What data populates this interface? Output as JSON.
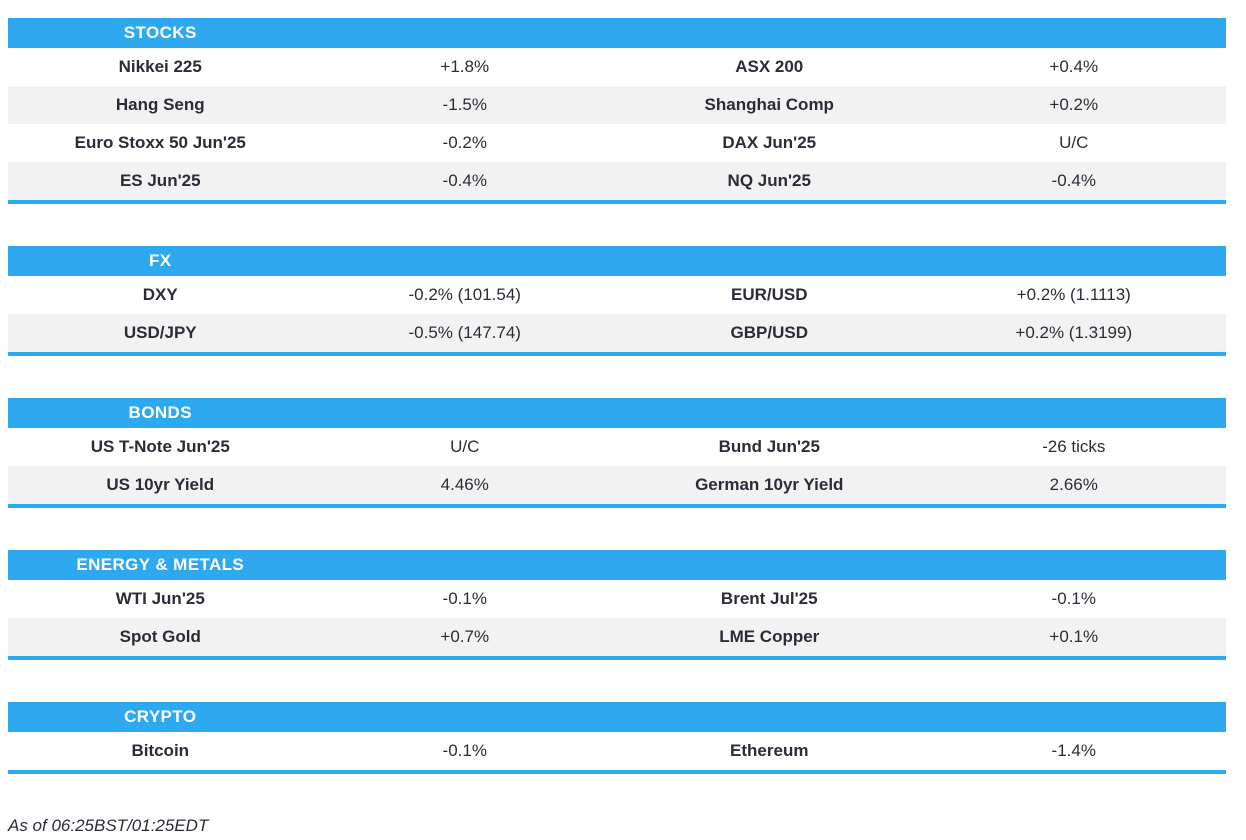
{
  "colors": {
    "accent_blue": "#2ea9f0",
    "header_text": "#ffffff",
    "row_alt_bg": "#f2f2f3",
    "row_bg": "#ffffff",
    "text": "#2c2c38"
  },
  "footer": {
    "as_of": "As of 06:25BST/01:25EDT"
  },
  "chart_data": [
    {
      "type": "table",
      "title": "STOCKS",
      "columns": [
        "instrument",
        "change",
        "instrument",
        "change"
      ],
      "rows": [
        [
          "Nikkei 225",
          "+1.8%",
          "ASX 200",
          "+0.4%"
        ],
        [
          "Hang Seng",
          "-1.5%",
          "Shanghai Comp",
          "+0.2%"
        ],
        [
          "Euro Stoxx 50 Jun'25",
          "-0.2%",
          "DAX Jun'25",
          "U/C"
        ],
        [
          "ES Jun'25",
          "-0.4%",
          "NQ Jun'25",
          "-0.4%"
        ]
      ]
    },
    {
      "type": "table",
      "title": "FX",
      "columns": [
        "instrument",
        "change",
        "instrument",
        "change"
      ],
      "rows": [
        [
          "DXY",
          "-0.2% (101.54)",
          "EUR/USD",
          "+0.2% (1.1113)"
        ],
        [
          "USD/JPY",
          "-0.5% (147.74)",
          "GBP/USD",
          "+0.2% (1.3199)"
        ]
      ]
    },
    {
      "type": "table",
      "title": "BONDS",
      "columns": [
        "instrument",
        "change",
        "instrument",
        "change"
      ],
      "rows": [
        [
          "US T-Note Jun'25",
          "U/C",
          "Bund Jun'25",
          "-26 ticks"
        ],
        [
          "US 10yr Yield",
          "4.46%",
          "German 10yr Yield",
          "2.66%"
        ]
      ]
    },
    {
      "type": "table",
      "title": "ENERGY & METALS",
      "columns": [
        "instrument",
        "change",
        "instrument",
        "change"
      ],
      "rows": [
        [
          "WTI Jun'25",
          "-0.1%",
          "Brent Jul'25",
          "-0.1%"
        ],
        [
          "Spot Gold",
          "+0.7%",
          "LME Copper",
          "+0.1%"
        ]
      ]
    },
    {
      "type": "table",
      "title": "CRYPTO",
      "columns": [
        "instrument",
        "change",
        "instrument",
        "change"
      ],
      "rows": [
        [
          "Bitcoin",
          "-0.1%",
          "Ethereum",
          "-1.4%"
        ]
      ]
    }
  ]
}
